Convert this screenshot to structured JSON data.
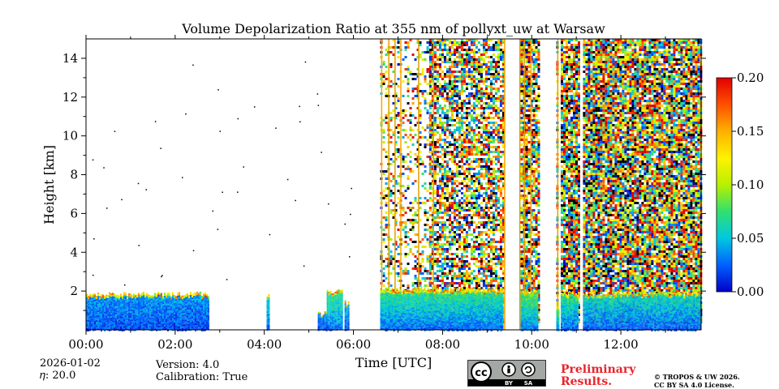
{
  "chart_data": {
    "type": "heatmap",
    "title": "Volume Depolarization Ratio at 355 nm of pollyxt_uw at Warsaw",
    "xlabel": "Time [UTC]",
    "ylabel": "Height [km]",
    "xlim_hours": [
      0,
      13.8
    ],
    "ylim_km": [
      0,
      15
    ],
    "x_ticks": [
      {
        "value": 0,
        "label": "00:00"
      },
      {
        "value": 2,
        "label": "02:00"
      },
      {
        "value": 4,
        "label": "04:00"
      },
      {
        "value": 6,
        "label": "06:00"
      },
      {
        "value": 8,
        "label": "08:00"
      },
      {
        "value": 10,
        "label": "10:00"
      },
      {
        "value": 12,
        "label": "12:00"
      }
    ],
    "y_ticks": [
      {
        "value": 2,
        "label": "2"
      },
      {
        "value": 4,
        "label": "4"
      },
      {
        "value": 6,
        "label": "6"
      },
      {
        "value": 8,
        "label": "8"
      },
      {
        "value": 10,
        "label": "10"
      },
      {
        "value": 12,
        "label": "12"
      },
      {
        "value": 14,
        "label": "14"
      }
    ],
    "colorbar": {
      "range": [
        0.0,
        0.2
      ],
      "ticks": [
        {
          "value": 0.0,
          "label": "0.00"
        },
        {
          "value": 0.05,
          "label": "0.05"
        },
        {
          "value": 0.1,
          "label": "0.10"
        },
        {
          "value": 0.15,
          "label": "0.15"
        },
        {
          "value": 0.2,
          "label": "0.20"
        }
      ],
      "colors": [
        "#0000c8",
        "#0060ff",
        "#00c8e0",
        "#30e070",
        "#b8f000",
        "#fff200",
        "#ffb000",
        "#ff5000",
        "#e00000"
      ]
    },
    "features": {
      "boundary_layer": [
        {
          "start_h": 0.0,
          "end_h": 2.75,
          "top_km": 1.85,
          "mean_value": 0.02
        },
        {
          "start_h": 4.05,
          "end_h": 4.1,
          "top_km": 1.8,
          "mean_value": 0.04
        },
        {
          "start_h": 5.2,
          "end_h": 5.4,
          "top_km": 0.85,
          "mean_value": 0.02
        },
        {
          "start_h": 5.4,
          "end_h": 5.75,
          "top_km": 2.0,
          "mean_value": 0.05
        },
        {
          "start_h": 5.8,
          "end_h": 5.9,
          "top_km": 1.4,
          "mean_value": 0.03
        },
        {
          "start_h": 6.6,
          "end_h": 9.35,
          "top_km": 2.1,
          "mean_value": 0.05
        },
        {
          "start_h": 9.75,
          "end_h": 10.15,
          "top_km": 2.0,
          "mean_value": 0.06
        },
        {
          "start_h": 10.55,
          "end_h": 10.6,
          "top_km": 1.2,
          "mean_value": 0.06
        },
        {
          "start_h": 10.65,
          "end_h": 11.05,
          "top_km": 1.9,
          "mean_value": 0.05
        },
        {
          "start_h": 11.15,
          "end_h": 13.8,
          "top_km": 1.9,
          "mean_value": 0.04
        }
      ],
      "noisy_regions": [
        {
          "start_h": 6.6,
          "end_h": 7.7,
          "density": 0.3
        },
        {
          "start_h": 7.7,
          "end_h": 9.35,
          "density": 0.72
        },
        {
          "start_h": 9.75,
          "end_h": 10.15,
          "density": 0.8
        },
        {
          "start_h": 10.55,
          "end_h": 10.6,
          "density": 0.5
        },
        {
          "start_h": 10.65,
          "end_h": 11.05,
          "density": 0.88
        },
        {
          "start_h": 11.15,
          "end_h": 13.8,
          "density": 0.9
        }
      ],
      "vertical_streaks_h": [
        6.62,
        6.78,
        6.92,
        7.05,
        7.45,
        7.78,
        9.38,
        9.72,
        9.82,
        9.97,
        10.57
      ]
    }
  },
  "footer": {
    "date": "2026-01-02",
    "eta": "𝜂: 20.0",
    "version": "Version: 4.0",
    "calibration": "Calibration: True",
    "preliminary_line1": "Preliminary",
    "preliminary_line2": "Results.",
    "copyright_line1": "© TROPOS & UW 2026.",
    "copyright_line2": "CC BY SA 4.0 License.",
    "cc_text": "cc",
    "by_text": "BY",
    "sa_text": "SA"
  }
}
